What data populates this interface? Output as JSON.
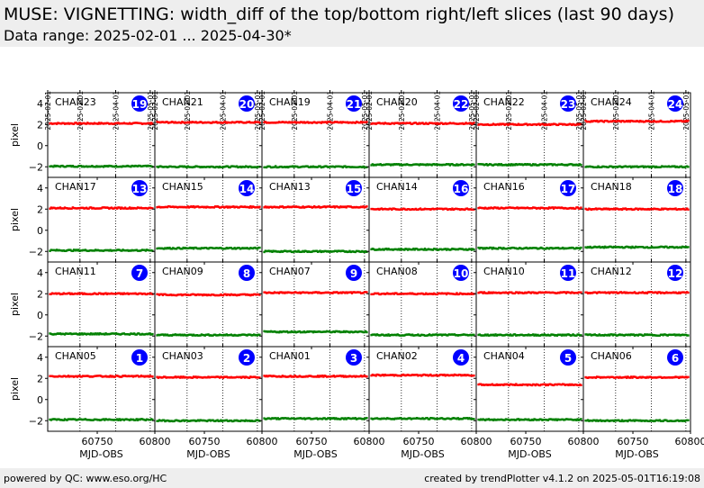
{
  "header": {
    "title": "MUSE: VIGNETTING: width_diff of the top/bottom right/left slices (last 90 days)",
    "subtitle": "Data range: 2025-02-01 ... 2025-04-30*"
  },
  "footer": {
    "left": "powered by QC: www.eso.org/HC",
    "right": "created by trendPlotter v4.1.2 on 2025-05-01T16:19:08"
  },
  "chart_data": {
    "type": "scatter",
    "ylabel": "pixel",
    "xlabel": "MJD-OBS",
    "xlim": [
      60707,
      60800
    ],
    "ylim": [
      -3,
      5
    ],
    "xticks": [
      60750,
      60800
    ],
    "xtick_labels": [
      "60750",
      "60800"
    ],
    "yticks": [
      4,
      2,
      0,
      -2
    ],
    "ytick_labels": [
      "4",
      "2",
      "0",
      "−2"
    ],
    "date_ticks": [
      60707,
      60735,
      60766,
      60796
    ],
    "date_labels": [
      "2025-02-01",
      "2025-03-01",
      "2025-04-01",
      "2025-05-01"
    ],
    "colors": {
      "top": "#ff0000",
      "bottom": "#008000",
      "badge": "#0000ff",
      "badge_text": "#ffffff"
    },
    "panels": [
      {
        "channel": "CHAN23",
        "badge": "19",
        "top": 2.1,
        "bottom": -1.95
      },
      {
        "channel": "CHAN21",
        "badge": "20",
        "top": 2.2,
        "bottom": -2.0
      },
      {
        "channel": "CHAN19",
        "badge": "21",
        "top": 2.2,
        "bottom": -2.0
      },
      {
        "channel": "CHAN20",
        "badge": "22",
        "top": 2.1,
        "bottom": -1.8
      },
      {
        "channel": "CHAN22",
        "badge": "23",
        "top": 2.0,
        "bottom": -1.8
      },
      {
        "channel": "CHAN24",
        "badge": "24",
        "top": 2.3,
        "bottom": -2.0
      },
      {
        "channel": "CHAN17",
        "badge": "13",
        "top": 2.1,
        "bottom": -1.9
      },
      {
        "channel": "CHAN15",
        "badge": "14",
        "top": 2.2,
        "bottom": -1.7
      },
      {
        "channel": "CHAN13",
        "badge": "15",
        "top": 2.2,
        "bottom": -2.0
      },
      {
        "channel": "CHAN14",
        "badge": "16",
        "top": 2.0,
        "bottom": -1.8
      },
      {
        "channel": "CHAN16",
        "badge": "17",
        "top": 2.1,
        "bottom": -1.7
      },
      {
        "channel": "CHAN18",
        "badge": "18",
        "top": 2.0,
        "bottom": -1.6
      },
      {
        "channel": "CHAN11",
        "badge": "7",
        "top": 2.0,
        "bottom": -1.8
      },
      {
        "channel": "CHAN09",
        "badge": "8",
        "top": 1.9,
        "bottom": -1.9
      },
      {
        "channel": "CHAN07",
        "badge": "9",
        "top": 2.1,
        "bottom": -1.6
      },
      {
        "channel": "CHAN08",
        "badge": "10",
        "top": 2.0,
        "bottom": -1.9
      },
      {
        "channel": "CHAN10",
        "badge": "11",
        "top": 2.1,
        "bottom": -1.9
      },
      {
        "channel": "CHAN12",
        "badge": "12",
        "top": 2.1,
        "bottom": -1.9
      },
      {
        "channel": "CHAN05",
        "badge": "1",
        "top": 2.2,
        "bottom": -1.9
      },
      {
        "channel": "CHAN03",
        "badge": "2",
        "top": 2.1,
        "bottom": -2.0
      },
      {
        "channel": "CHAN01",
        "badge": "3",
        "top": 2.2,
        "bottom": -1.8
      },
      {
        "channel": "CHAN02",
        "badge": "4",
        "top": 2.3,
        "bottom": -1.8
      },
      {
        "channel": "CHAN04",
        "badge": "5",
        "top": 1.4,
        "bottom": -1.9
      },
      {
        "channel": "CHAN06",
        "badge": "6",
        "top": 2.1,
        "bottom": -2.0
      }
    ]
  }
}
